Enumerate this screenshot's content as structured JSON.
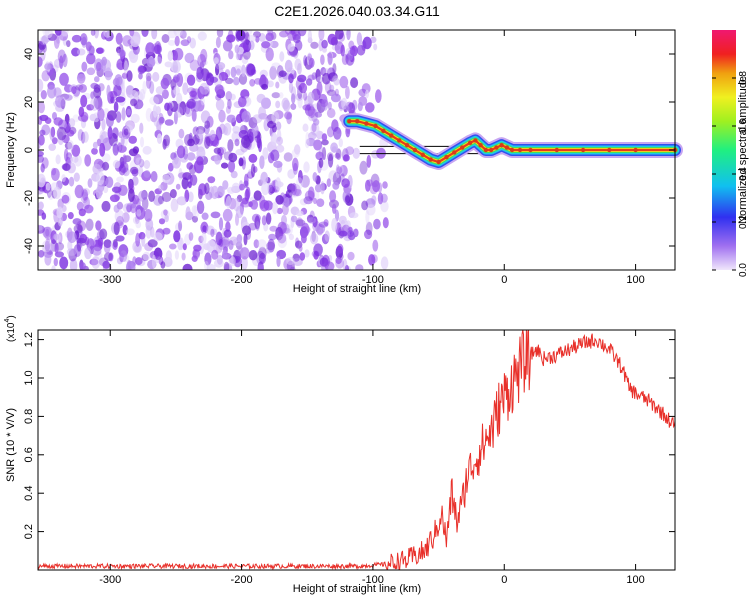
{
  "title": "C2E1.2026.040.03.34.G11",
  "colors": {
    "signal": "#e8302a",
    "noise": "#7a2ad6",
    "trace_core": "#d93a1a",
    "axis": "#000000"
  },
  "chart_data": [
    {
      "type": "heatmap",
      "xlabel": "Height of straight line (km)",
      "ylabel": "Frequency (Hz)",
      "xlim": [
        -355,
        130
      ],
      "ylim": [
        -50,
        50
      ],
      "x_ticks": [
        -300,
        -200,
        -100,
        0,
        100
      ],
      "y_ticks": [
        -40,
        -20,
        0,
        20,
        40
      ],
      "colorbar": {
        "label": "Normalized spectral amplitude",
        "range": [
          0,
          1
        ],
        "ticks": [
          "0.0",
          "0.2",
          "0.4",
          "0.6",
          "0.8"
        ],
        "tick_values": [
          0.0,
          0.2,
          0.4,
          0.6,
          0.8
        ],
        "colormap": "rainbow"
      },
      "noise_region_x": [
        -355,
        -90
      ],
      "trace": {
        "x": [
          -118,
          -112,
          -105,
          -98,
          -92,
          -86,
          -80,
          -74,
          -68,
          -62,
          -56,
          -50,
          -44,
          -38,
          -32,
          -26,
          -22,
          -18,
          -14,
          -10,
          -6,
          -2,
          2,
          6,
          12,
          20,
          40,
          60,
          80,
          100,
          130
        ],
        "y": [
          12,
          12,
          11,
          10,
          8,
          6,
          4,
          2,
          0,
          -2,
          -4,
          -5,
          -3,
          -1,
          1,
          3,
          4,
          2,
          0,
          0,
          1,
          2,
          1,
          0,
          0,
          0,
          0,
          0,
          0,
          0,
          0
        ]
      },
      "reference_line_y": [
        -1.5,
        1.5
      ]
    },
    {
      "type": "line",
      "xlabel": "Height of straight line (km)",
      "ylabel": "SNR (10 * V/V)",
      "scale_label": "(x10",
      "scale_exponent": "4",
      "xlim": [
        -355,
        130
      ],
      "ylim": [
        0,
        1.25
      ],
      "x_ticks": [
        -300,
        -200,
        -100,
        0,
        100
      ],
      "y_ticks": [
        0.2,
        0.4,
        0.6,
        0.8,
        1.0,
        1.2
      ],
      "series": [
        {
          "x": [
            -355,
            -300,
            -250,
            -200,
            -150,
            -110,
            -90,
            -75,
            -60,
            -52,
            -48,
            -44,
            -40,
            -36,
            -32,
            -28,
            -24,
            -20,
            -16,
            -12,
            -8,
            -4,
            0,
            4,
            8,
            12,
            16,
            20,
            25,
            30,
            40,
            50,
            60,
            70,
            80,
            90,
            95,
            100,
            110,
            120,
            130
          ],
          "y": [
            0.02,
            0.02,
            0.02,
            0.02,
            0.02,
            0.02,
            0.03,
            0.05,
            0.1,
            0.2,
            0.3,
            0.15,
            0.4,
            0.25,
            0.35,
            0.5,
            0.55,
            0.6,
            0.65,
            0.7,
            0.75,
            0.85,
            0.9,
            0.95,
            1.0,
            1.05,
            1.1,
            1.12,
            1.15,
            1.1,
            1.12,
            1.15,
            1.18,
            1.2,
            1.15,
            1.05,
            0.95,
            0.92,
            0.88,
            0.82,
            0.75
          ]
        }
      ]
    }
  ]
}
